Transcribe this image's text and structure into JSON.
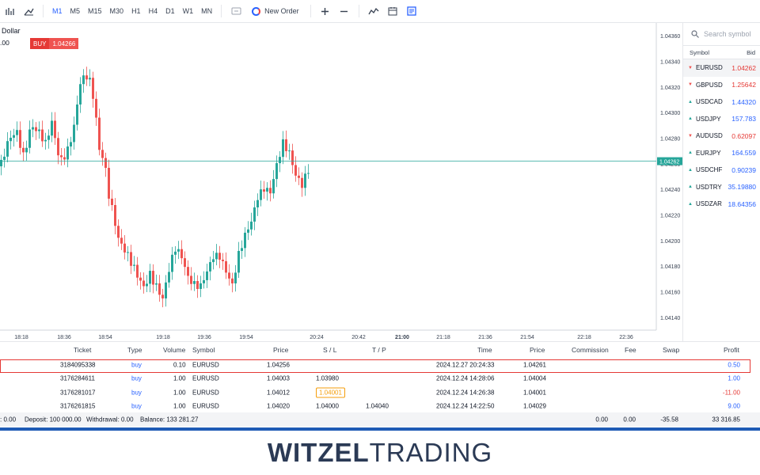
{
  "toolbar": {
    "timeframes": [
      "M1",
      "M5",
      "M15",
      "M30",
      "H1",
      "H4",
      "D1",
      "W1",
      "MN"
    ],
    "active_timeframe": "M1",
    "new_order_label": "New Order"
  },
  "chart": {
    "symbol_fragment": "Dollar",
    "price_fragment": ".00",
    "buy_label": "BUY",
    "buy_price": "1.04266",
    "current_price_label": "1.04262",
    "price_axis": [
      "1.04360",
      "1.04340",
      "1.04320",
      "1.04300",
      "1.04280",
      "1.04260",
      "1.04240",
      "1.04220",
      "1.04200",
      "1.04180",
      "1.04160",
      "1.04140"
    ],
    "time_axis": [
      "18:18",
      "18:36",
      "18:54",
      "19:18",
      "19:36",
      "19:54",
      "20:24",
      "20:42",
      "21:00",
      "21:18",
      "21:36",
      "21:54",
      "22:18",
      "22:36"
    ],
    "colors": {
      "up": "#26a69a",
      "down": "#ef5350",
      "price_line": "#26a69a"
    }
  },
  "market_watch": {
    "search_placeholder": "Search symbol",
    "col_symbol": "Symbol",
    "col_bid": "Bid",
    "rows": [
      {
        "symbol": "EURUSD",
        "bid": "1.04262",
        "dir": "down"
      },
      {
        "symbol": "GBPUSD",
        "bid": "1.25642",
        "dir": "down"
      },
      {
        "symbol": "USDCAD",
        "bid": "1.44320",
        "dir": "up"
      },
      {
        "symbol": "USDJPY",
        "bid": "157.783",
        "dir": "up"
      },
      {
        "symbol": "AUDUSD",
        "bid": "0.62097",
        "dir": "down"
      },
      {
        "symbol": "EURJPY",
        "bid": "164.559",
        "dir": "up"
      },
      {
        "symbol": "USDCHF",
        "bid": "0.90239",
        "dir": "up"
      },
      {
        "symbol": "USDTRY",
        "bid": "35.19880",
        "dir": "up"
      },
      {
        "symbol": "USDZAR",
        "bid": "18.64356",
        "dir": "up"
      }
    ]
  },
  "positions": {
    "headers": {
      "ticket": "Ticket",
      "type": "Type",
      "volume": "Volume",
      "symbol": "Symbol",
      "price": "Price",
      "sl": "S / L",
      "tp": "T / P",
      "time": "Time",
      "price2": "Price",
      "commission": "Commission",
      "fee": "Fee",
      "swap": "Swap",
      "profit": "Profit"
    },
    "rows": [
      {
        "ticket": "3184095338",
        "type": "buy",
        "volume": "0.10",
        "symbol": "EURUSD",
        "price": "1.04256",
        "sl": "",
        "tp": "",
        "time": "2024.12.27 20:24:33",
        "price2": "1.04261",
        "profit": "0.50",
        "profit_neg": false
      },
      {
        "ticket": "3176284611",
        "type": "buy",
        "volume": "1.00",
        "symbol": "EURUSD",
        "price": "1.04003",
        "sl": "1.03980",
        "tp": "",
        "time": "2024.12.24 14:28:06",
        "price2": "1.04004",
        "profit": "1.00",
        "profit_neg": false
      },
      {
        "ticket": "3176281017",
        "type": "buy",
        "volume": "1.00",
        "symbol": "EURUSD",
        "price": "1.04012",
        "sl": "1.04001",
        "tp": "",
        "time": "2024.12.24 14:26:38",
        "price2": "1.04001",
        "profit": "-11.00",
        "profit_neg": true
      },
      {
        "ticket": "3176261815",
        "type": "buy",
        "volume": "1.00",
        "symbol": "EURUSD",
        "price": "1.04020",
        "sl": "1.04000",
        "tp": "1.04040",
        "time": "2024.12.24 14:22:50",
        "price2": "1.04029",
        "profit": "9.00",
        "profit_neg": false
      }
    ],
    "summary": {
      "partial": ": 0.00",
      "deposit": "Deposit: 100 000.00",
      "withdrawal": "Withdrawal: 0.00",
      "balance": "Balance: 133 281.27",
      "commission": "0.00",
      "fee": "0.00",
      "swap": "-35.58",
      "profit": "33 316.85"
    }
  },
  "brand": {
    "part1": "WITZEL",
    "part2": "TRADING"
  }
}
